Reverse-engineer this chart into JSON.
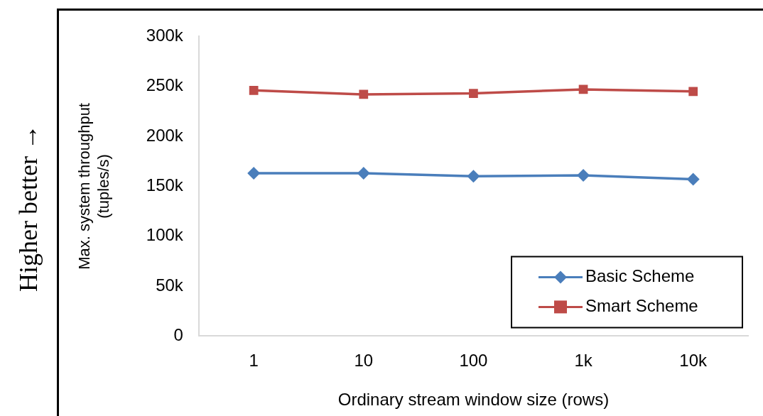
{
  "chart_data": {
    "type": "line",
    "categories": [
      "1",
      "10",
      "100",
      "1k",
      "10k"
    ],
    "series": [
      {
        "name": "Basic Scheme",
        "color": "#4a7ebb",
        "marker": "diamond",
        "values": [
          163,
          163,
          160,
          161,
          157
        ]
      },
      {
        "name": "Smart Scheme",
        "color": "#be4b48",
        "marker": "square",
        "values": [
          246,
          242,
          243,
          247,
          245
        ]
      }
    ],
    "xlabel": "Ordinary stream window size (rows)",
    "ylabel": "Max. system throughput\n(tuples/s)",
    "ylim": [
      0,
      300
    ],
    "yticks": [
      0,
      {
        "value": 50,
        "label": "50k"
      },
      {
        "value": 100,
        "label": "100k"
      },
      {
        "value": 150,
        "label": "150k"
      },
      {
        "value": 200,
        "label": "200k"
      },
      {
        "value": 250,
        "label": "250k"
      },
      {
        "value": 300,
        "label": "300k"
      }
    ],
    "grid": false,
    "legend": "bottom right",
    "line_style": "solid",
    "annotations": [
      "Higher better →"
    ]
  }
}
